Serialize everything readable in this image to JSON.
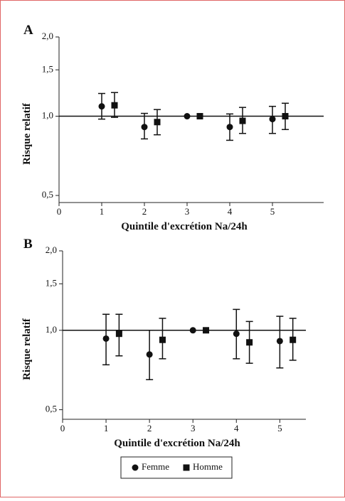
{
  "chart_data": [
    {
      "type": "scatter",
      "label": "A",
      "x_label": "Quintile d'excrétion Na/24h",
      "y_label": "Risque relatif",
      "log_y": true,
      "hline": 1.0,
      "xlim": [
        0,
        6.2
      ],
      "xticks": [
        0,
        1,
        2,
        3,
        4,
        5
      ],
      "ylim": [
        0.47,
        2.0
      ],
      "yticks": [
        {
          "value": 0.5,
          "label": "0,5"
        },
        {
          "value": 1.0,
          "label": "1,0"
        },
        {
          "value": 1.5,
          "label": "1,5"
        },
        {
          "value": 2.0,
          "label": "2,0"
        }
      ],
      "series": [
        {
          "name": "Femme",
          "color": "#111111",
          "marker": "circle",
          "x": [
            1,
            2,
            3,
            4,
            5
          ],
          "values": [
            1.09,
            0.91,
            1.0,
            0.91,
            0.975
          ],
          "lower": [
            0.975,
            0.82,
            null,
            0.81,
            0.86
          ],
          "upper": [
            1.22,
            1.025,
            null,
            1.02,
            1.09
          ]
        },
        {
          "name": "Homme",
          "color": "#111111",
          "marker": "square",
          "x": [
            1.3,
            2.3,
            3.3,
            4.3,
            5.3
          ],
          "values": [
            1.1,
            0.95,
            1.0,
            0.96,
            1.0
          ],
          "lower": [
            0.99,
            0.85,
            null,
            0.86,
            0.89
          ],
          "upper": [
            1.23,
            1.06,
            null,
            1.08,
            1.12
          ]
        }
      ]
    },
    {
      "type": "scatter",
      "label": "B",
      "x_label": "Quintile d'excrétion Na/24h",
      "y_label": "Risque relatif",
      "log_y": true,
      "hline": 1.0,
      "xlim": [
        0,
        5.6
      ],
      "xticks": [
        0,
        1,
        2,
        3,
        4,
        5
      ],
      "ylim": [
        0.46,
        2.0
      ],
      "yticks": [
        {
          "value": 0.5,
          "label": "0,5"
        },
        {
          "value": 1.0,
          "label": "1,0"
        },
        {
          "value": 1.5,
          "label": "1,5"
        },
        {
          "value": 2.0,
          "label": "2,0"
        }
      ],
      "series": [
        {
          "name": "Femme",
          "color": "#111111",
          "marker": "circle",
          "x": [
            1,
            2,
            3,
            4,
            5
          ],
          "values": [
            0.93,
            0.81,
            1.0,
            0.97,
            0.91
          ],
          "lower": [
            0.74,
            0.65,
            null,
            0.78,
            0.72
          ],
          "upper": [
            1.15,
            1.0,
            null,
            1.2,
            1.13
          ]
        },
        {
          "name": "Homme",
          "color": "#111111",
          "marker": "square",
          "x": [
            1.3,
            2.3,
            3.3,
            4.3,
            5.3
          ],
          "values": [
            0.97,
            0.92,
            1.0,
            0.9,
            0.92
          ],
          "lower": [
            0.8,
            0.78,
            null,
            0.75,
            0.77
          ],
          "upper": [
            1.15,
            1.11,
            null,
            1.08,
            1.11
          ]
        }
      ]
    }
  ]
}
